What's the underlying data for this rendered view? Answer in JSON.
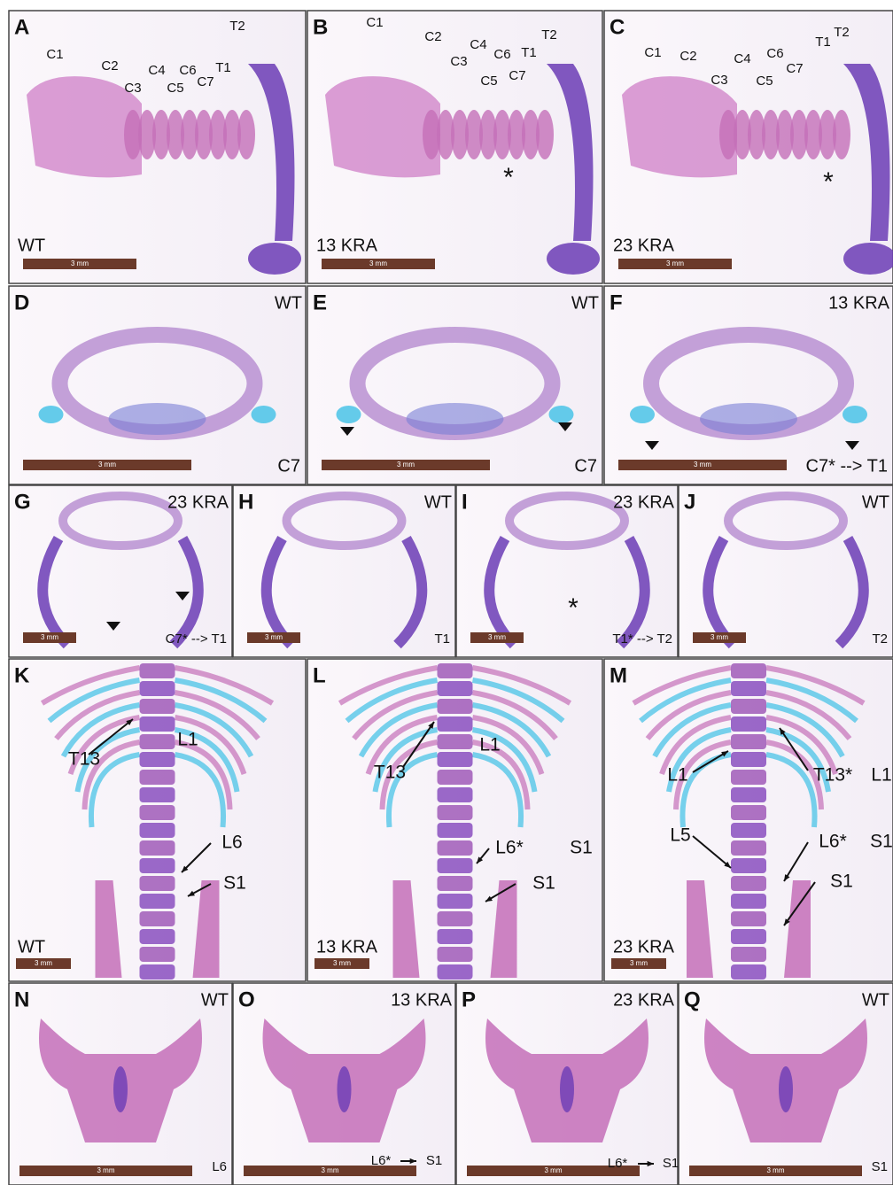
{
  "panels": [
    {
      "letter": "A",
      "genotype": "WT",
      "scale": "3 mm",
      "annotations": [
        "C1",
        "C2",
        "C3",
        "C4",
        "C5",
        "C6",
        "C7",
        "T1",
        "T2"
      ]
    },
    {
      "letter": "B",
      "genotype": "13 KRA",
      "scale": "3 mm",
      "annotations": [
        "C1",
        "C2",
        "C3",
        "C4",
        "C5",
        "C6",
        "C7",
        "T1",
        "T2",
        "*"
      ]
    },
    {
      "letter": "C",
      "genotype": "23 KRA",
      "scale": "3 mm",
      "annotations": [
        "C1",
        "C2",
        "C3",
        "C4",
        "C5",
        "C6",
        "C7",
        "T1",
        "T2",
        "*"
      ]
    },
    {
      "letter": "D",
      "genotype": "WT",
      "label": "C7",
      "scale": "3 mm",
      "annotations": []
    },
    {
      "letter": "E",
      "genotype": "WT",
      "label": "C7",
      "scale": "3 mm",
      "annotations": []
    },
    {
      "letter": "F",
      "genotype": "13 KRA",
      "label": "C7* --> T1",
      "scale": "3 mm",
      "annotations": []
    },
    {
      "letter": "G",
      "genotype": "23 KRA",
      "label": "C7* --> T1",
      "scale": "3 mm",
      "annotations": []
    },
    {
      "letter": "H",
      "genotype": "WT",
      "label": "T1",
      "scale": "3 mm",
      "annotations": []
    },
    {
      "letter": "I",
      "genotype": "23 KRA",
      "label": "T1* --> T2",
      "scale": "3 mm",
      "annotations": [
        "*"
      ]
    },
    {
      "letter": "J",
      "genotype": "WT",
      "label": "T2",
      "scale": "3 mm",
      "annotations": []
    },
    {
      "letter": "K",
      "genotype": "WT",
      "scale": "3 mm",
      "annotations": [
        "T13",
        "L1",
        "L6",
        "S1"
      ]
    },
    {
      "letter": "L",
      "genotype": "13 KRA",
      "scale": "3 mm",
      "annotations": [
        "T13",
        "L1",
        "L6*",
        "S1",
        "S1"
      ]
    },
    {
      "letter": "M",
      "genotype": "23 KRA",
      "scale": "3 mm",
      "annotations": [
        "L1",
        "T13*",
        "L1",
        "L5",
        "L6*",
        "S1",
        "S1"
      ]
    },
    {
      "letter": "N",
      "genotype": "WT",
      "label": "L6",
      "scale": "3 mm",
      "annotations": []
    },
    {
      "letter": "O",
      "genotype": "13 KRA",
      "scale": "3 mm",
      "annotations": [
        "L6*",
        "S1"
      ]
    },
    {
      "letter": "P",
      "genotype": "23 KRA",
      "scale": "3 mm",
      "annotations": [
        "L6*",
        "S1"
      ]
    },
    {
      "letter": "Q",
      "genotype": "WT",
      "label": "S1",
      "scale": "3 mm",
      "annotations": []
    }
  ]
}
